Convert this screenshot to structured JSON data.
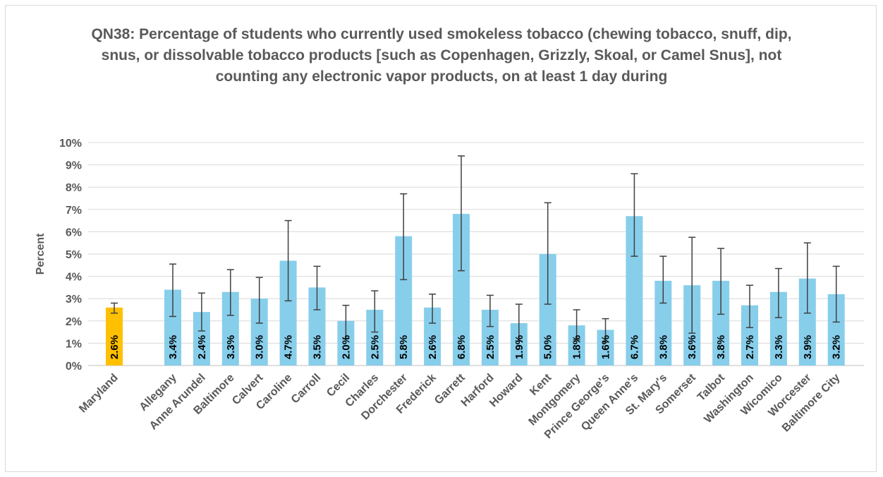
{
  "chart_data": {
    "type": "bar",
    "title": "QN38: Percentage of students who currently used smokeless tobacco (chewing tobacco, snuff, dip, snus, or dissolvable tobacco products [such as Copenhagen, Grizzly, Skoal, or Camel Snus], not counting any electronic vapor products, on at least 1 day during",
    "ylabel": "Percent",
    "xlabel": "",
    "ylim": [
      0,
      10
    ],
    "yticks": [
      "0%",
      "1%",
      "2%",
      "3%",
      "4%",
      "5%",
      "6%",
      "7%",
      "8%",
      "9%",
      "10%"
    ],
    "grid": true,
    "colors": {
      "state": "#FFC000",
      "county": "#87CEEB",
      "error": "#404040"
    },
    "categories": [
      "Maryland",
      "Allegany",
      "Anne Arundel",
      "Baltimore",
      "Calvert",
      "Caroline",
      "Carroll",
      "Cecil",
      "Charles",
      "Dorchester",
      "Frederick",
      "Garrett",
      "Harford",
      "Howard",
      "Kent",
      "Montgomery",
      "Prince George's",
      "Queen Anne's",
      "St. Mary's",
      "Somerset",
      "Talbot",
      "Washington",
      "Wicomico",
      "Worcester",
      "Baltimore City"
    ],
    "values": [
      2.6,
      3.4,
      2.4,
      3.3,
      3.0,
      4.7,
      3.5,
      2.0,
      2.5,
      5.8,
      2.6,
      6.8,
      2.5,
      1.9,
      5.0,
      1.8,
      1.6,
      6.7,
      3.8,
      3.6,
      3.8,
      2.7,
      3.3,
      3.9,
      3.2
    ],
    "labels": [
      "2.6%",
      "3.4%",
      "2.4%",
      "3.3%",
      "3.0%",
      "4.7%",
      "3.5%",
      "2.0%",
      "2.5%",
      "5.8%",
      "2.6%",
      "6.8%",
      "2.5%",
      "1.9%",
      "5.0%",
      "1.8%",
      "1.6%",
      "6.7%",
      "3.8%",
      "3.6%",
      "3.8%",
      "2.7%",
      "3.3%",
      "3.9%",
      "3.2%"
    ],
    "error_low": [
      2.35,
      2.2,
      1.55,
      2.25,
      1.9,
      2.9,
      2.5,
      1.2,
      1.5,
      3.85,
      1.9,
      4.25,
      1.75,
      1.1,
      2.75,
      1.15,
      1.05,
      4.9,
      2.8,
      1.45,
      2.3,
      1.7,
      2.15,
      2.35,
      1.95
    ],
    "error_high": [
      2.8,
      4.55,
      3.25,
      4.3,
      3.95,
      6.5,
      4.45,
      2.7,
      3.35,
      7.7,
      3.2,
      9.4,
      3.15,
      2.75,
      7.3,
      2.5,
      2.1,
      8.6,
      4.9,
      5.75,
      5.25,
      3.6,
      4.35,
      5.5,
      4.45
    ]
  }
}
